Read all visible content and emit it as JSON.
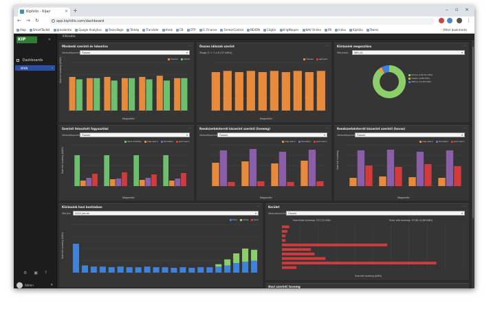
{
  "browser": {
    "tab_title": "Kiphilio - Kijaz",
    "url": "app.kiphilio.com/dashboard",
    "bookmarks": [
      "Alap",
      "SmartToolkit",
      "gmailomto",
      "Google Analytics",
      "Teszvillage",
      "Térkép",
      "Translate",
      "Hírek",
      "CB",
      "OTP",
      "G. Finance",
      "FarmerControl",
      "NEXON",
      "Cégtár",
      "KrigMapper",
      "NAV Online",
      "PB",
      "Index",
      "Kiphilio",
      "Teams"
    ],
    "other_bookmarks": "Other bookmarks"
  },
  "sidebar": {
    "logo": "KIP",
    "nav_label": "Dashboards",
    "sub_item": "MAIN",
    "user_name": "Admin"
  },
  "breadcrumb": "Kifáradás",
  "panels": {
    "p1": {
      "title": "Mindenki szerinti év lebontva",
      "label": "Választópozíció",
      "select": "Összes"
    },
    "p2": {
      "title": "Összes időszak szerint",
      "info": "Tanga (1 + 7 a 6 (37 kWh))"
    },
    "p3": {
      "title": "Kiírásaink megoszlása",
      "label": "Mérjelzés",
      "select": "Wifi (4)"
    },
    "p4": {
      "title": "Szerinti felosztott fogyasztási",
      "label": "Választópozíció",
      "select": "Összes"
    },
    "p5": {
      "title": "Rendszerkénterről kiszerint szerinti (tovemg)",
      "label": "Választópozíció",
      "select": "Összes"
    },
    "p6": {
      "title": "Rendszerkénterről kiszerint szerinti (havas)",
      "label": "Választópozíció",
      "select": "Összes"
    },
    "p7": {
      "title": "Kiírásaink havi bontásban",
      "label": "Mérjelz",
      "select": "2020 január"
    },
    "p8": {
      "title": "Kerület",
      "label": "Választópozíció",
      "select": "Összes",
      "info_left": "Szerkülek tovemg: 517,22 kWh",
      "info_right": "Szint alik tovemg: 57,80 (3,88 kWh)"
    },
    "p9": {
      "title": "Havi szerinti tovemg"
    }
  },
  "legends": {
    "p1": [
      "Összes",
      "Idézet"
    ],
    "p2": [
      "Összes",
      "Igénylet"
    ],
    "p3": [
      "Online (145,55 kWh)",
      "Ideális (4,89 kWh)",
      "Offline (12,85 kWh)"
    ],
    "p4": [
      "Teret szektály",
      "Alap szerv.",
      "Rendelés",
      "Javít szerv."
    ],
    "p5": [
      "Alap szerv.",
      "Rendelés",
      "Javít szerv."
    ],
    "p6": [
      "Alap szerv.",
      "Rendelés",
      "Javít szerv."
    ],
    "p7": [
      "Intm",
      "Lakás",
      "Ipari"
    ]
  },
  "axis_labels": {
    "p1_y": "Szerint tovemg (kWh)",
    "p1_x": "Negyedév",
    "p2_x": "Negyedév",
    "p4_y": "Szerinti tovemg (kWh)",
    "p4_x": "Negyedév",
    "p5_x": "Negyedév",
    "p6_y": "Szerinti tovemg",
    "p6_x": "Negyedév",
    "p7_y": "Szerinti tovemg (kWh)",
    "p8_x": "Szerinti tovemg (kWh)"
  },
  "colors": {
    "orange": "#e88a3c",
    "green": "#6cbf6c",
    "red": "#d23b3b",
    "purple": "#8a5ea8",
    "blue": "#3f82d9",
    "lightgreen": "#8ccf6a"
  },
  "chart_data": [
    {
      "type": "bar",
      "id": "p1",
      "series": [
        {
          "name": "Összes",
          "values": [
            28,
            27,
            28,
            27,
            28,
            29,
            27
          ]
        },
        {
          "name": "Idézet",
          "values": [
            26,
            27,
            25,
            27,
            26,
            25,
            27
          ]
        }
      ],
      "ylim": [
        0,
        40
      ]
    },
    {
      "type": "bar",
      "id": "p2",
      "series": [
        {
          "name": "Összes",
          "values": [
            32,
            33,
            32,
            33,
            32,
            33,
            32,
            33,
            32,
            33
          ]
        }
      ],
      "ylim": [
        0,
        40
      ]
    },
    {
      "type": "pie",
      "id": "p3",
      "values": [
        145.55,
        4.89,
        12.85
      ],
      "labels": [
        "Online",
        "Ideális",
        "Offline"
      ]
    },
    {
      "type": "bar",
      "id": "p4",
      "series": [
        {
          "name": "Teret szektály",
          "values": [
            45,
            45,
            45,
            45
          ]
        },
        {
          "name": "Alap szerv.",
          "values": [
            8,
            10,
            9,
            8
          ]
        },
        {
          "name": "Rendelés",
          "values": [
            12,
            11,
            12,
            11
          ]
        },
        {
          "name": "Javít szerv.",
          "values": [
            18,
            20,
            17,
            19
          ]
        }
      ],
      "ylim": [
        0,
        60
      ]
    },
    {
      "type": "bar",
      "id": "p5",
      "series": [
        {
          "name": "Alap szerv.",
          "values": [
            34,
            36,
            33,
            37
          ]
        },
        {
          "name": "Rendelés",
          "values": [
            52,
            54,
            50,
            53
          ]
        },
        {
          "name": "Javít szerv.",
          "values": [
            6,
            7,
            6,
            7
          ]
        }
      ],
      "ylim": [
        0,
        60
      ]
    },
    {
      "type": "bar",
      "id": "p6",
      "series": [
        {
          "name": "Alap szerv.",
          "values": [
            12,
            14,
            13,
            12
          ]
        },
        {
          "name": "Rendelés",
          "values": [
            52,
            53,
            50,
            52
          ]
        },
        {
          "name": "Javít szerv.",
          "values": [
            30,
            28,
            32,
            29
          ]
        }
      ],
      "ylim": [
        0,
        60
      ]
    },
    {
      "type": "bar",
      "id": "p7",
      "categories": [
        "1",
        "2",
        "3",
        "4",
        "5",
        "6",
        "7",
        "8",
        "9",
        "10",
        "11",
        "12",
        "13",
        "14",
        "15",
        "16",
        "17",
        "18",
        "19",
        "20",
        "21"
      ],
      "series": [
        {
          "name": "Intm",
          "values": [
            48,
            12,
            10,
            10,
            9,
            10,
            9,
            9,
            10,
            9,
            9,
            8,
            9,
            8,
            9,
            9,
            10,
            12,
            16,
            18,
            20
          ]
        },
        {
          "name": "Lakás",
          "values": [
            0,
            0,
            0,
            0,
            0,
            0,
            0,
            0,
            0,
            0,
            0,
            0,
            0,
            0,
            0,
            0,
            4,
            10,
            16,
            22,
            18
          ]
        }
      ],
      "ylim": [
        0,
        80
      ]
    },
    {
      "type": "bar",
      "id": "p8",
      "orientation": "horizontal",
      "values": [
        4,
        3,
        2,
        2,
        58,
        16,
        18,
        24,
        85,
        8
      ],
      "xlim": [
        0,
        100
      ]
    }
  ]
}
